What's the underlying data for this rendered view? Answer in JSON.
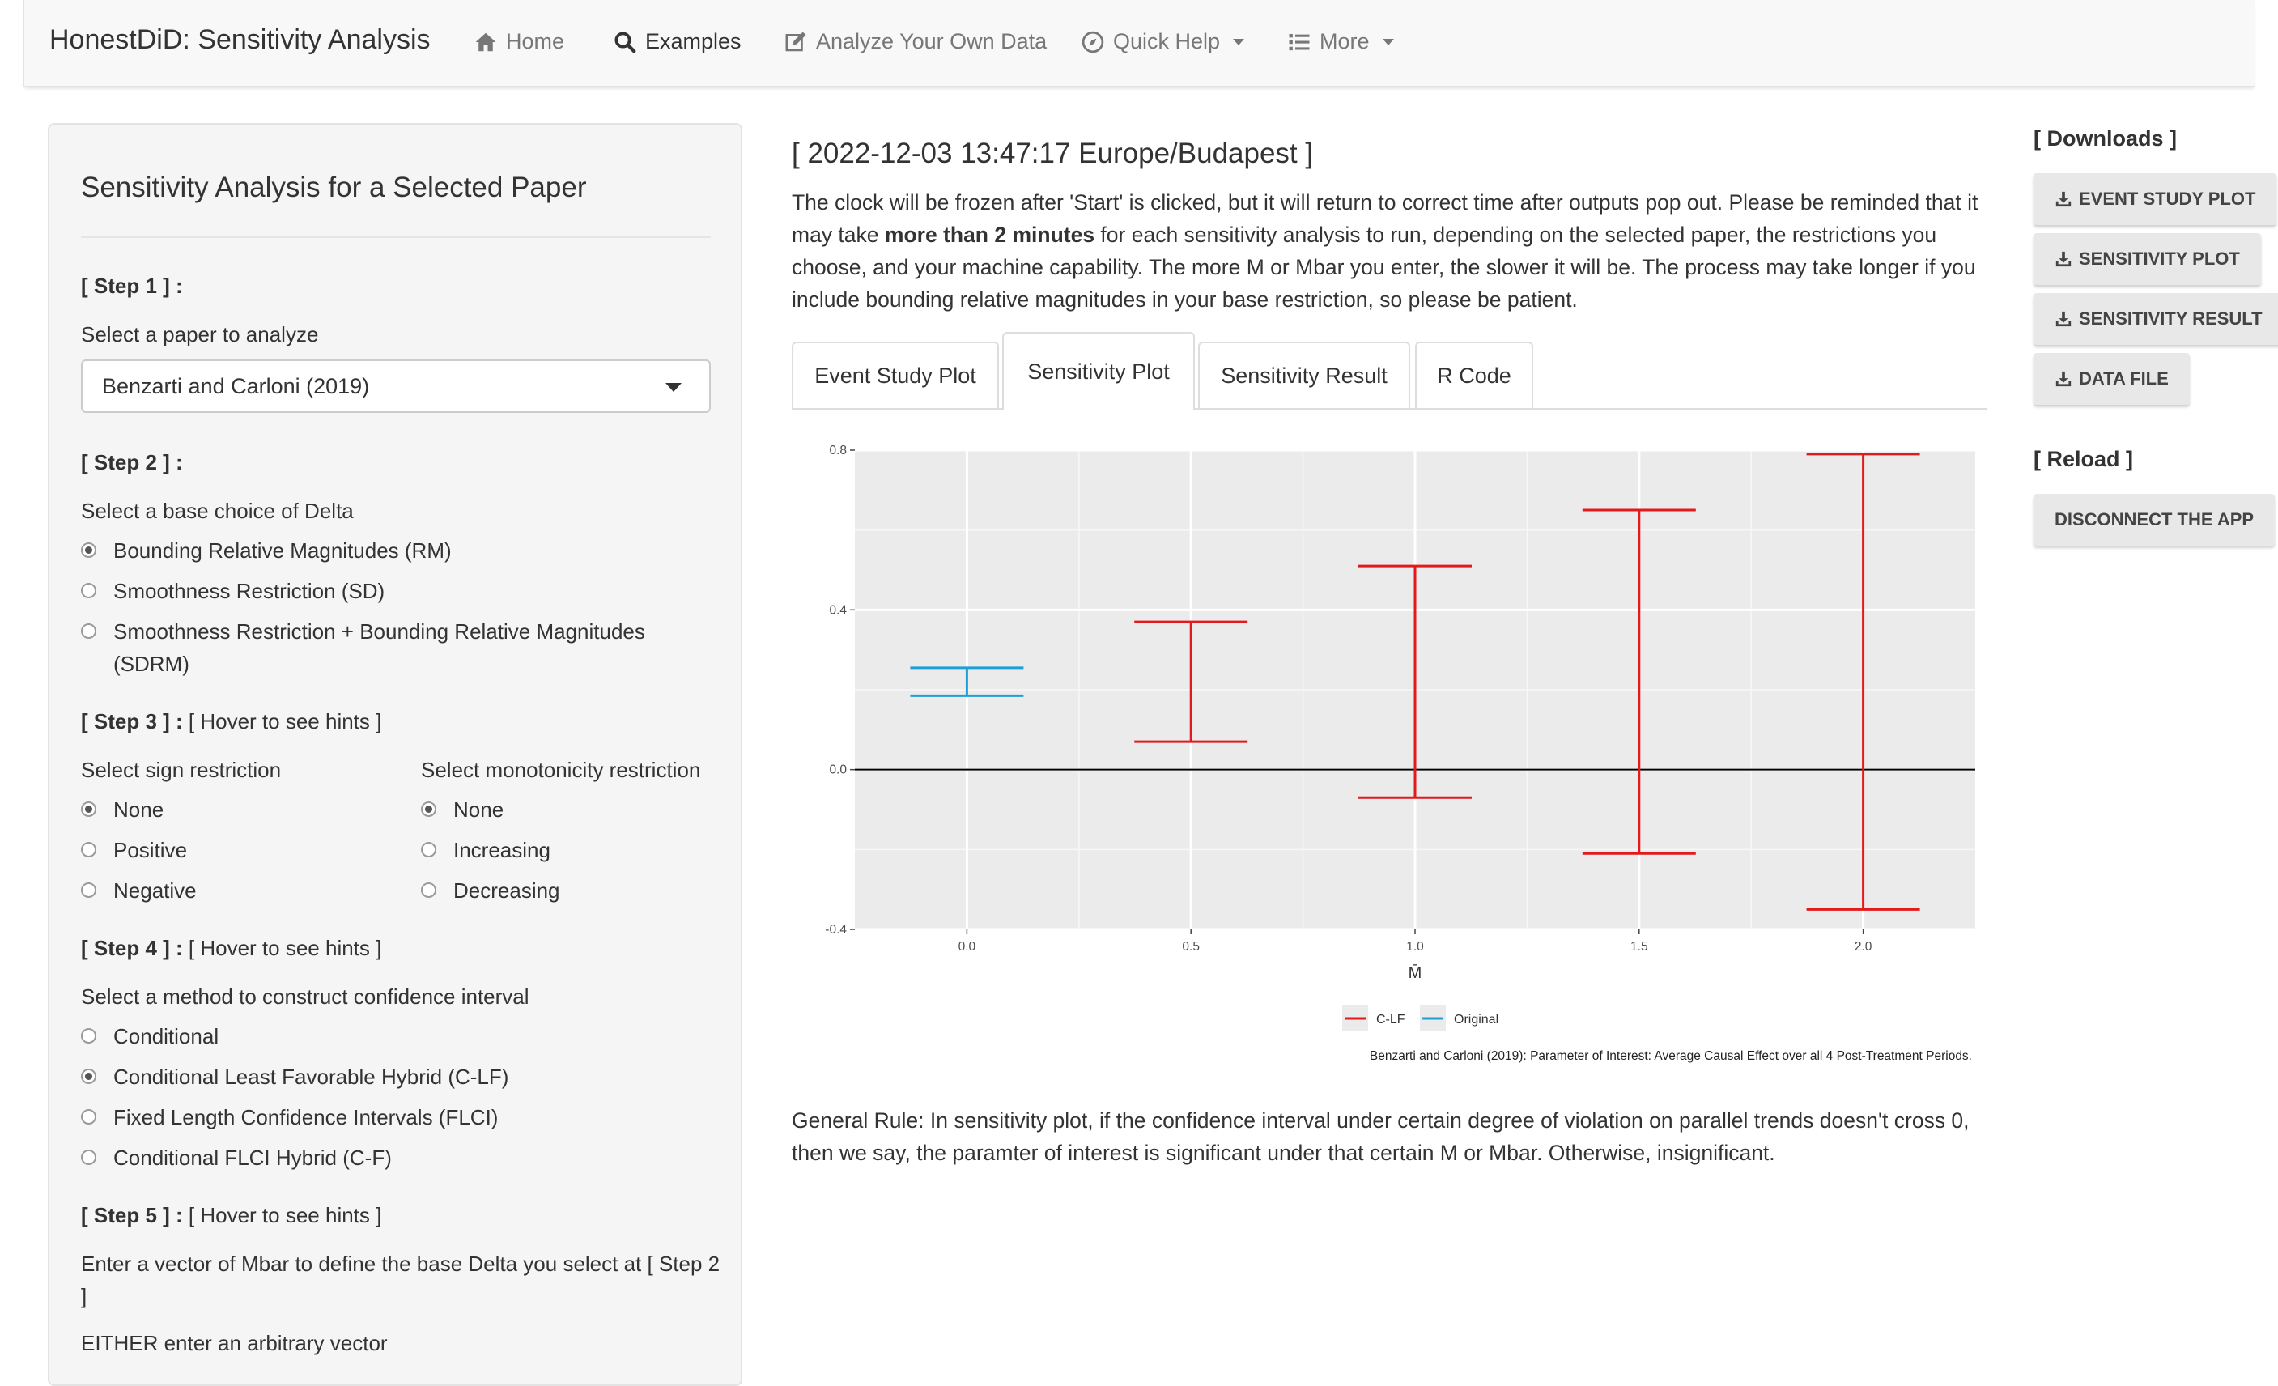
{
  "navbar": {
    "brand": "HonestDiD: Sensitivity Analysis",
    "items": [
      {
        "label": "Home",
        "icon": "home-icon"
      },
      {
        "label": "Examples",
        "icon": "search-icon"
      },
      {
        "label": "Analyze Your Own Data",
        "icon": "edit-icon"
      },
      {
        "label": "Quick Help",
        "icon": "compass-icon"
      },
      {
        "label": "More",
        "icon": "list-icon"
      }
    ]
  },
  "sidebar": {
    "title": "Sensitivity Analysis for a Selected Paper",
    "step1": {
      "label": "[ Step 1 ] :",
      "prompt": "Select a paper to analyze",
      "selected": "Benzarti and Carloni (2019)"
    },
    "step2": {
      "label": "[ Step 2 ] :",
      "prompt": "Select a base choice of Delta",
      "options": [
        "Bounding Relative Magnitudes (RM)",
        "Smoothness Restriction (SD)",
        "Smoothness Restriction + Bounding Relative Magnitudes",
        "(SDRM)"
      ]
    },
    "step3": {
      "label": "[ Step 3 ] :",
      "hint": "[ Hover to see hints ]",
      "sign_prompt": "Select sign restriction",
      "sign_options": [
        "None",
        "Positive",
        "Negative"
      ],
      "mono_prompt": "Select monotonicity restriction",
      "mono_options": [
        "None",
        "Increasing",
        "Decreasing"
      ]
    },
    "step4": {
      "label": "[ Step 4 ] :",
      "hint": "[ Hover to see hints ]",
      "prompt": "Select a method to construct confidence interval",
      "options": [
        "Conditional",
        "Conditional Least Favorable Hybrid (C-LF)",
        "Fixed Length Confidence Intervals (FLCI)",
        "Conditional FLCI Hybrid (C-F)"
      ]
    },
    "step5": {
      "label": "[ Step 5 ] :",
      "hint": "[ Hover to see hints ]",
      "prompt_line1": "Enter a vector of Mbar to define the base Delta you select at [ Step 2",
      "prompt_line2": "]",
      "either": "EITHER enter an arbitrary vector"
    }
  },
  "main": {
    "datetime": "[ 2022-12-03 13:47:17 Europe/Budapest ]",
    "notice_part1": "The clock will be frozen after 'Start' is clicked, but it will return to correct time after outputs pop out. Please be reminded that it may take ",
    "notice_bold": "more than 2 minutes",
    "notice_part2": " for each sensitivity analysis to run, depending on the selected paper, the restrictions you choose, and your machine capability. The more M or Mbar you enter, the slower it will be. The process may take longer if you include bounding relative magnitudes in your base restriction, so please be patient.",
    "tabs": [
      "Event Study Plot",
      "Sensitivity Plot",
      "Sensitivity Result",
      "R Code"
    ],
    "active_tab": "Sensitivity Plot",
    "general_rule": "General Rule: In sensitivity plot, if the confidence interval under certain degree of violation on parallel trends doesn't cross 0, then we say, the paramter of interest is significant under that certain M or Mbar. Otherwise, insignificant."
  },
  "right": {
    "downloads_title": "[ Downloads ]",
    "download_buttons": [
      "EVENT STUDY PLOT",
      "SENSITIVITY PLOT",
      "SENSITIVITY RESULT",
      "DATA FILE"
    ],
    "reload_title": "[ Reload ]",
    "reload_button": "DISCONNECT THE APP"
  },
  "chart_data": {
    "type": "errorbar",
    "xlabel": "M̄",
    "ylabel": "",
    "caption": "Benzarti and Carloni (2019): Parameter of Interest: Average Causal Effect over all 4 Post-Treatment Periods.",
    "xlim": [
      -0.25,
      2.25
    ],
    "ylim": [
      -0.4,
      0.8
    ],
    "x_ticks": [
      0.0,
      0.5,
      1.0,
      1.5,
      2.0
    ],
    "x_tick_labels": [
      "0.0",
      "0.5",
      "1.0",
      "1.5",
      "2.0"
    ],
    "y_ticks": [
      -0.4,
      0.0,
      0.4,
      0.8
    ],
    "y_tick_labels": [
      "-0.4",
      "0.0",
      "0.4",
      "0.8"
    ],
    "grid": true,
    "legend_position": "bottom",
    "series": [
      {
        "name": "C-LF",
        "color": "#e31a1c",
        "points": [
          {
            "x": 0.5,
            "lb": 0.07,
            "ub": 0.37
          },
          {
            "x": 1.0,
            "lb": -0.07,
            "ub": 0.51
          },
          {
            "x": 1.5,
            "lb": -0.21,
            "ub": 0.65
          },
          {
            "x": 2.0,
            "lb": -0.35,
            "ub": 0.79
          }
        ]
      },
      {
        "name": "Original",
        "color": "#1f9fd6",
        "points": [
          {
            "x": 0.0,
            "lb": 0.185,
            "ub": 0.255
          }
        ]
      }
    ]
  }
}
